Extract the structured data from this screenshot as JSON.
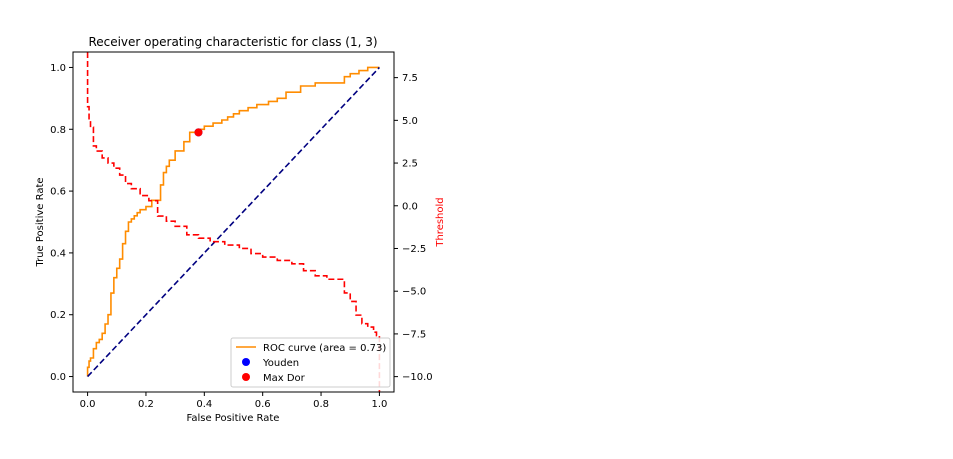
{
  "chart_data": {
    "type": "line",
    "title": "Receiver operating characteristic for class (1, 3)",
    "xlabel": "False Positive Rate",
    "ylabel": "True Positive Rate",
    "y2label": "Threshold",
    "xlim": [
      -0.05,
      1.05
    ],
    "ylim": [
      -0.05,
      1.05
    ],
    "y2lim": [
      -10.9,
      9.0
    ],
    "x_ticks": [
      "0.0",
      "0.2",
      "0.4",
      "0.6",
      "0.8",
      "1.0"
    ],
    "y_ticks": [
      "0.0",
      "0.2",
      "0.4",
      "0.6",
      "0.8",
      "1.0"
    ],
    "y2_ticks": [
      "7.5",
      "5.0",
      "2.5",
      "0.0",
      "−2.5",
      "−5.0",
      "−7.5",
      "−10.0"
    ],
    "legend_position": "lower-right",
    "series": [
      {
        "name": "ROC curve (area = 0.73)",
        "color": "#ff8c00",
        "style": "step",
        "x": [
          0.0,
          0.0,
          0.005,
          0.005,
          0.01,
          0.01,
          0.02,
          0.02,
          0.03,
          0.03,
          0.04,
          0.04,
          0.05,
          0.05,
          0.06,
          0.06,
          0.07,
          0.07,
          0.08,
          0.08,
          0.09,
          0.09,
          0.1,
          0.1,
          0.11,
          0.11,
          0.12,
          0.12,
          0.13,
          0.13,
          0.14,
          0.14,
          0.15,
          0.15,
          0.16,
          0.16,
          0.17,
          0.17,
          0.18,
          0.18,
          0.2,
          0.2,
          0.22,
          0.22,
          0.25,
          0.25,
          0.26,
          0.26,
          0.27,
          0.27,
          0.28,
          0.28,
          0.3,
          0.3,
          0.33,
          0.33,
          0.35,
          0.35,
          0.38,
          0.38,
          0.4,
          0.4,
          0.43,
          0.43,
          0.46,
          0.46,
          0.48,
          0.48,
          0.5,
          0.5,
          0.52,
          0.52,
          0.55,
          0.55,
          0.58,
          0.58,
          0.62,
          0.62,
          0.65,
          0.65,
          0.68,
          0.68,
          0.73,
          0.73,
          0.78,
          0.78,
          0.8,
          0.8,
          0.88,
          0.88,
          0.9,
          0.9,
          0.93,
          0.93,
          0.96,
          0.96,
          1.0
        ],
        "y": [
          0.0,
          0.03,
          0.03,
          0.05,
          0.05,
          0.06,
          0.06,
          0.09,
          0.09,
          0.11,
          0.11,
          0.12,
          0.12,
          0.14,
          0.14,
          0.17,
          0.17,
          0.2,
          0.2,
          0.27,
          0.27,
          0.32,
          0.32,
          0.35,
          0.35,
          0.38,
          0.38,
          0.43,
          0.43,
          0.47,
          0.47,
          0.5,
          0.5,
          0.51,
          0.51,
          0.52,
          0.52,
          0.53,
          0.53,
          0.54,
          0.54,
          0.55,
          0.55,
          0.57,
          0.57,
          0.62,
          0.62,
          0.66,
          0.66,
          0.68,
          0.68,
          0.7,
          0.7,
          0.73,
          0.73,
          0.76,
          0.76,
          0.79,
          0.79,
          0.8,
          0.8,
          0.81,
          0.81,
          0.82,
          0.82,
          0.83,
          0.83,
          0.84,
          0.84,
          0.85,
          0.85,
          0.86,
          0.86,
          0.87,
          0.87,
          0.88,
          0.88,
          0.89,
          0.89,
          0.9,
          0.9,
          0.92,
          0.92,
          0.94,
          0.94,
          0.95,
          0.95,
          0.95,
          0.95,
          0.97,
          0.97,
          0.98,
          0.98,
          0.99,
          0.99,
          1.0,
          1.0
        ]
      },
      {
        "name": "",
        "color": "#000080",
        "style": "dashed",
        "x": [
          0.0,
          1.0
        ],
        "y": [
          0.0,
          1.0
        ]
      },
      {
        "name": "",
        "color": "#ff0000",
        "style": "dashed-step",
        "axis": "y2",
        "x": [
          0.0,
          0.0,
          0.005,
          0.005,
          0.01,
          0.01,
          0.02,
          0.02,
          0.03,
          0.03,
          0.05,
          0.05,
          0.07,
          0.07,
          0.09,
          0.09,
          0.11,
          0.11,
          0.13,
          0.13,
          0.15,
          0.15,
          0.18,
          0.18,
          0.21,
          0.21,
          0.24,
          0.24,
          0.27,
          0.27,
          0.3,
          0.3,
          0.34,
          0.34,
          0.38,
          0.38,
          0.42,
          0.42,
          0.47,
          0.47,
          0.52,
          0.52,
          0.56,
          0.56,
          0.6,
          0.6,
          0.65,
          0.65,
          0.7,
          0.7,
          0.74,
          0.74,
          0.78,
          0.78,
          0.82,
          0.82,
          0.88,
          0.88,
          0.9,
          0.9,
          0.92,
          0.92,
          0.94,
          0.94,
          0.96,
          0.96,
          0.98,
          0.98,
          0.99,
          0.99,
          1.0,
          1.0
        ],
        "y": [
          9.0,
          5.8,
          5.8,
          5.0,
          5.0,
          4.6,
          4.6,
          3.5,
          3.5,
          3.2,
          3.2,
          2.8,
          2.8,
          2.5,
          2.5,
          2.2,
          2.2,
          1.8,
          1.8,
          1.3,
          1.3,
          1.0,
          1.0,
          0.6,
          0.6,
          0.3,
          0.3,
          -0.6,
          -0.6,
          -0.9,
          -0.9,
          -1.2,
          -1.2,
          -1.7,
          -1.7,
          -1.9,
          -1.9,
          -2.1,
          -2.1,
          -2.3,
          -2.3,
          -2.5,
          -2.5,
          -2.8,
          -2.8,
          -3.0,
          -3.0,
          -3.2,
          -3.2,
          -3.4,
          -3.4,
          -3.8,
          -3.8,
          -4.1,
          -4.1,
          -4.3,
          -4.3,
          -5.1,
          -5.1,
          -5.6,
          -5.6,
          -6.4,
          -6.4,
          -6.9,
          -6.9,
          -7.1,
          -7.1,
          -7.4,
          -7.4,
          -7.6,
          -7.6,
          -10.9
        ]
      }
    ],
    "markers": [
      {
        "name": "Youden",
        "color": "#0000ff",
        "x": 0.38,
        "y": 0.79
      },
      {
        "name": "Max Dor",
        "color": "#ff0000",
        "x": 0.38,
        "y": 0.79
      }
    ]
  }
}
